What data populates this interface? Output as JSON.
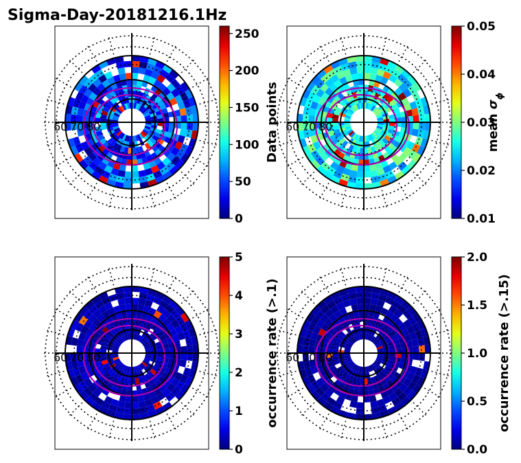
{
  "figure": {
    "title": "Sigma-Day-20181216.1Hz"
  },
  "chart_data": [
    {
      "type": "heatmap",
      "projection": "polar",
      "colormap": "jet",
      "panel": "top-left",
      "latitude_labels": [
        "60",
        "70",
        "80"
      ],
      "colorbar": {
        "label": "Data points",
        "range": [
          0,
          260
        ],
        "ticks": [
          "0",
          "50",
          "100",
          "150",
          "200",
          "250"
        ],
        "tick_values": [
          0,
          50,
          100,
          150,
          200,
          250
        ]
      }
    },
    {
      "type": "heatmap",
      "projection": "polar",
      "colormap": "jet",
      "panel": "top-right",
      "latitude_labels": [
        "60",
        "70",
        "80"
      ],
      "colorbar": {
        "label_main": "mean ",
        "label_symbol": "σ",
        "label_sub": "ϕ",
        "range": [
          0.01,
          0.05
        ],
        "ticks": [
          "0.01",
          "0.02",
          "0.03",
          "0.04",
          "0.05"
        ],
        "tick_values": [
          0.01,
          0.02,
          0.03,
          0.04,
          0.05
        ]
      }
    },
    {
      "type": "heatmap",
      "projection": "polar",
      "colormap": "jet",
      "panel": "bottom-left",
      "latitude_labels": [
        "60",
        "70",
        "80"
      ],
      "colorbar": {
        "label": "occurrence rate (>.1)",
        "range": [
          0,
          5
        ],
        "ticks": [
          "0",
          "1",
          "2",
          "3",
          "4",
          "5"
        ],
        "tick_values": [
          0,
          1,
          2,
          3,
          4,
          5
        ]
      }
    },
    {
      "type": "heatmap",
      "projection": "polar",
      "colormap": "jet",
      "panel": "bottom-right",
      "latitude_labels": [
        "60",
        "70",
        "80"
      ],
      "colorbar": {
        "label": "occurrence rate (>.15)",
        "range": [
          0,
          2
        ],
        "ticks": [
          "0.0",
          "0.5",
          "1.0",
          "1.5",
          "2.0"
        ],
        "tick_values": [
          0,
          0.5,
          1,
          1.5,
          2
        ]
      }
    }
  ]
}
